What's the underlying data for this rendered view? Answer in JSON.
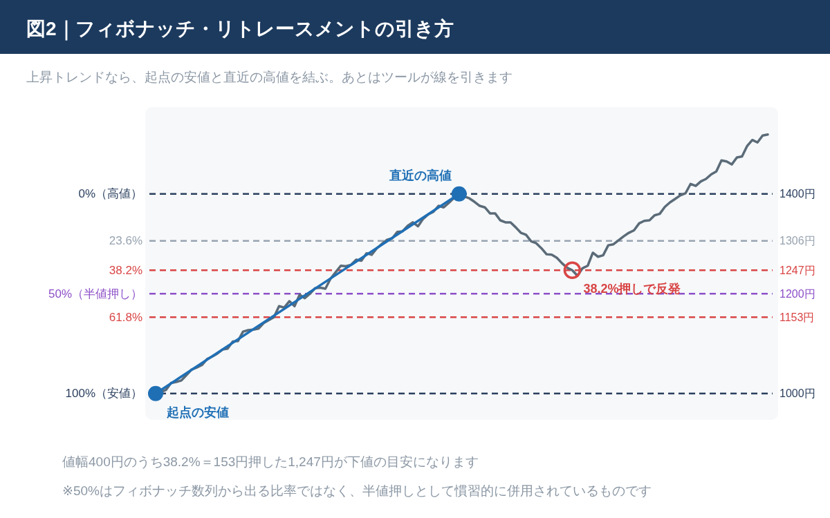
{
  "chart_data": {
    "type": "line",
    "title": "図2｜フィボナッチ・リトレースメントの引き方",
    "subtitle": "上昇トレンドなら、起点の安値と直近の高値を結ぶ。あとはツールが線を引きます",
    "categories": [
      null,
      null,
      null,
      null,
      null,
      null,
      null,
      null,
      null,
      null,
      null,
      null,
      null,
      null,
      null,
      null,
      null,
      null,
      null,
      null,
      null,
      null,
      null,
      null,
      null,
      null,
      null,
      null,
      null,
      null,
      null,
      null,
      null,
      null,
      null,
      null,
      null,
      null,
      null,
      null,
      null,
      null,
      null,
      null,
      null,
      null,
      null,
      null,
      null,
      null,
      null,
      null,
      null,
      null,
      null,
      null,
      null,
      null,
      null,
      null,
      null,
      null,
      null,
      null,
      null,
      null,
      null,
      null,
      null,
      null,
      null,
      null,
      null,
      null,
      null,
      null,
      null,
      null,
      null,
      null,
      null,
      null,
      null,
      null,
      null,
      null,
      null,
      null,
      null,
      null,
      null,
      null,
      null,
      null,
      null,
      null,
      null,
      null,
      null,
      null,
      null,
      null,
      null,
      null,
      null,
      null,
      null,
      null,
      null,
      null,
      null,
      null,
      null,
      null,
      null,
      null,
      null,
      null,
      null,
      null
    ],
    "series": [
      {
        "axis": "y2",
        "color": "#5b6b78",
        "values": [
          1000,
          1003,
          1007,
          1021,
          1023,
          1026,
          1037,
          1048,
          1052,
          1057,
          1069,
          1074,
          1080,
          1088,
          1090,
          1104,
          1105,
          1124,
          1127,
          1128,
          1130,
          1141,
          1147,
          1153,
          1175,
          1172,
          1185,
          1175,
          1198,
          1191,
          1200,
          1211,
          1212,
          1210,
          1230,
          1243,
          1256,
          1255,
          1258,
          1268,
          1266,
          1281,
          1278,
          1291,
          1300,
          1308,
          1311,
          1324,
          1325,
          1336,
          1343,
          1335,
          1350,
          1359,
          1364,
          1376,
          1373,
          1382,
          1392,
          1400,
          1395,
          1391,
          1384,
          1376,
          1373,
          1361,
          1361,
          1347,
          1343,
          1343,
          1333,
          1322,
          1318,
          1305,
          1301,
          1291,
          1279,
          1278,
          1272,
          1261,
          1252,
          1247,
          1236,
          1251,
          1256,
          1282,
          1274,
          1277,
          1297,
          1299,
          1307,
          1315,
          1322,
          1327,
          1341,
          1346,
          1347,
          1357,
          1360,
          1374,
          1383,
          1390,
          1397,
          1401,
          1420,
          1416,
          1425,
          1430,
          1439,
          1445,
          1467,
          1465,
          1459,
          1473,
          1475,
          1496,
          1508,
          1503,
          1517,
          1519
        ]
      },
      {
        "axis": "y2",
        "color": "#1f6fb5",
        "marker": "circle",
        "values": [
          1000,
          null,
          null,
          null,
          null,
          null,
          null,
          null,
          null,
          null,
          null,
          null,
          null,
          null,
          null,
          null,
          null,
          null,
          null,
          null,
          null,
          null,
          null,
          null,
          null,
          null,
          null,
          null,
          null,
          null,
          null,
          null,
          null,
          null,
          null,
          null,
          null,
          null,
          null,
          null,
          null,
          null,
          null,
          null,
          null,
          null,
          null,
          null,
          null,
          null,
          null,
          null,
          null,
          null,
          null,
          null,
          null,
          null,
          null,
          1400,
          null,
          null,
          null,
          null,
          null,
          null,
          null,
          null,
          null,
          null,
          null,
          null,
          null,
          null,
          null,
          null,
          null,
          null,
          null,
          null,
          null,
          null,
          null,
          null,
          null,
          null,
          null,
          null,
          null,
          null,
          null,
          null,
          null,
          null,
          null,
          null,
          null,
          null,
          null,
          null,
          null,
          null,
          null,
          null,
          null,
          null,
          null,
          null,
          null,
          null,
          null,
          null,
          null,
          null,
          null,
          null,
          null,
          null,
          null,
          null
        ]
      },
      {
        "axis": "y2",
        "type": "scatter",
        "color": "#d94545",
        "values": [
          null,
          null,
          null,
          null,
          null,
          null,
          null,
          null,
          null,
          null,
          null,
          null,
          null,
          null,
          null,
          null,
          null,
          null,
          null,
          null,
          null,
          null,
          null,
          null,
          null,
          null,
          null,
          null,
          null,
          null,
          null,
          null,
          null,
          null,
          null,
          null,
          null,
          null,
          null,
          null,
          null,
          null,
          null,
          null,
          null,
          null,
          null,
          null,
          null,
          null,
          null,
          null,
          null,
          null,
          null,
          null,
          null,
          null,
          null,
          null,
          null,
          null,
          null,
          null,
          null,
          null,
          null,
          null,
          null,
          null,
          null,
          null,
          null,
          null,
          null,
          null,
          null,
          null,
          null,
          null,
          null,
          1247,
          null,
          null,
          null,
          null,
          null,
          null,
          null,
          null,
          null,
          null,
          null,
          null,
          null,
          null,
          null,
          null,
          null,
          null,
          null,
          null,
          null,
          null,
          null,
          null,
          null,
          null,
          null,
          null,
          null,
          null,
          null,
          null,
          null,
          null,
          null,
          null,
          null,
          null
        ]
      }
    ],
    "ylim": [
      113.25,
      -43.5
    ],
    "yticks": [
      {
        "value": 0,
        "label": "0%（高値）"
      },
      {
        "value": 23.6,
        "label": "23.6%"
      },
      {
        "value": 38.2,
        "label": "38.2%"
      },
      {
        "value": 50,
        "label": "50%（半値押し）"
      },
      {
        "value": 61.8,
        "label": "61.8%"
      },
      {
        "value": 100,
        "label": "100%（安値）"
      }
    ],
    "y2lim": [
      947,
      1574
    ],
    "y2ticks": [
      {
        "value": 1400,
        "label": "1400円"
      },
      {
        "value": 1306,
        "label": "1306円"
      },
      {
        "value": 1247,
        "label": "1247円"
      },
      {
        "value": 1200,
        "label": "1200円"
      },
      {
        "value": 1153,
        "label": "1153円"
      },
      {
        "value": 1000,
        "label": "1000円"
      }
    ],
    "tick_labels": "y",
    "ref_lines": [
      {
        "axis": "y2",
        "value": 1400,
        "color": "#2a3f5e",
        "line_style": "dashed"
      },
      {
        "axis": "y2",
        "value": 1306,
        "color": "#97a3b0",
        "line_style": "dashed"
      },
      {
        "axis": "y2",
        "value": 1247,
        "color": "#d94545",
        "line_style": "dashed"
      },
      {
        "axis": "y2",
        "value": 1200,
        "color": "#8d4fc8",
        "line_style": "dashed"
      },
      {
        "axis": "y2",
        "value": 1153,
        "color": "#d94545",
        "line_style": "dashed"
      },
      {
        "axis": "y2",
        "value": 1000,
        "color": "#2a3f5e",
        "line_style": "dashed"
      }
    ],
    "annotations": [
      {
        "text": "起点の安値",
        "y": 100
      },
      {
        "text": "直近の高値",
        "y": 0
      },
      {
        "text": "38.2%押しで反発",
        "y": 38.2
      },
      "値幅400円のうち38.2%＝153円押した1,247円が下値の目安になります",
      "※50%はフィボナッチ数列から出る比率ではなく、半値押しとして慣習的に併用されているものです"
    ]
  }
}
